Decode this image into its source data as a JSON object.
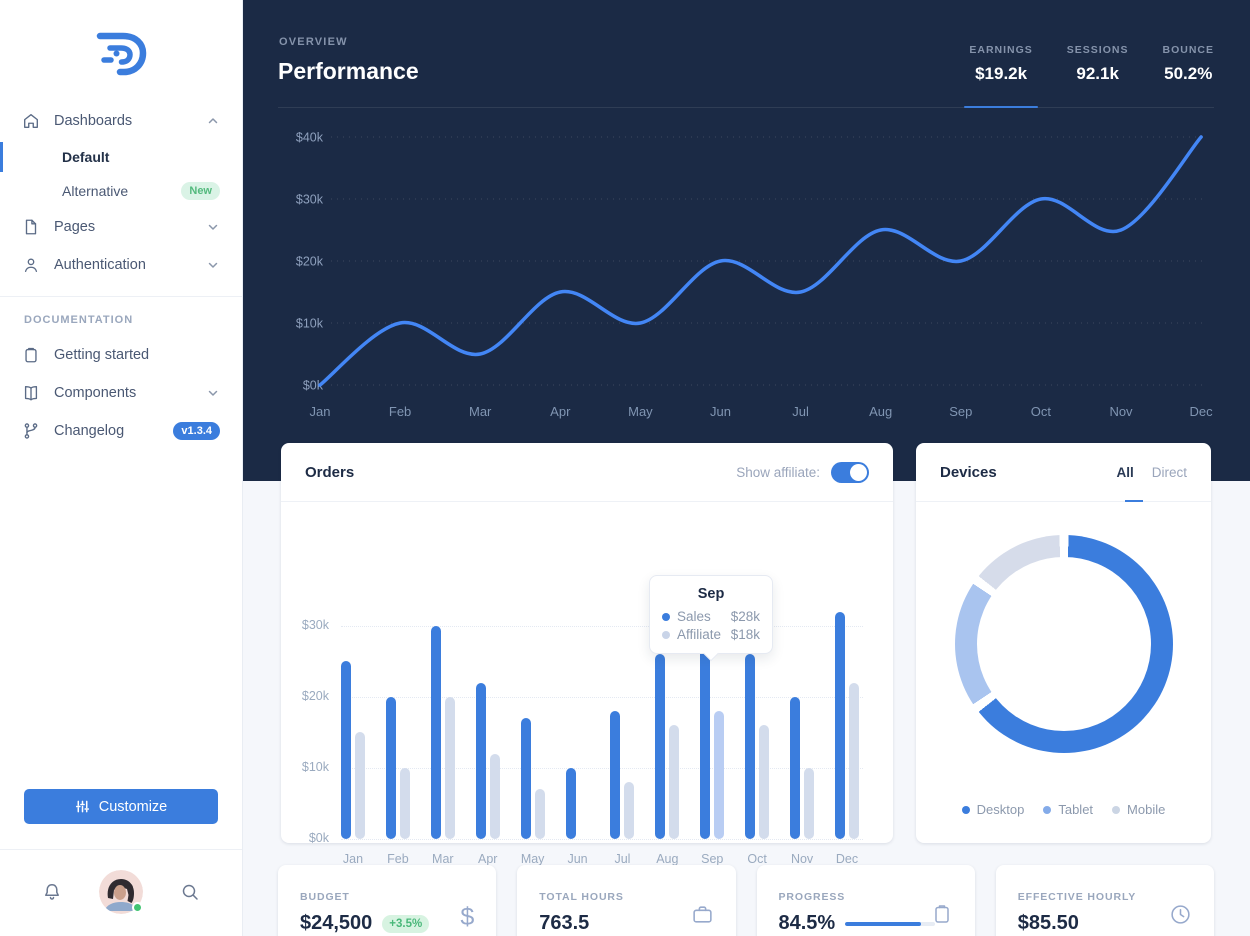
{
  "colors": {
    "accent": "#3b7ddd",
    "navy": "#1b2a45",
    "success": "#4ab87a",
    "muted_bar": "#d3dcec",
    "highlight_bar": "#b9cdf3"
  },
  "sidebar": {
    "nav": [
      {
        "label": "Dashboards",
        "icon": "home-icon",
        "chevron": "up"
      },
      {
        "label": "Default",
        "active": true
      },
      {
        "label": "Alternative",
        "badge": "New"
      },
      {
        "label": "Pages",
        "icon": "file-icon",
        "chevron": "down"
      },
      {
        "label": "Authentication",
        "icon": "user-icon",
        "chevron": "down"
      }
    ],
    "section_label": "DOCUMENTATION",
    "docs": [
      {
        "label": "Getting started",
        "icon": "clipboard-icon"
      },
      {
        "label": "Components",
        "icon": "book-icon",
        "chevron": "down"
      },
      {
        "label": "Changelog",
        "icon": "git-branch-icon",
        "badge": "v1.3.4"
      }
    ],
    "customize_label": "Customize"
  },
  "header": {
    "eyebrow": "OVERVIEW",
    "title": "Performance",
    "stats": [
      {
        "label": "EARNINGS",
        "value": "$19.2k",
        "active": true
      },
      {
        "label": "SESSIONS",
        "value": "92.1k"
      },
      {
        "label": "BOUNCE",
        "value": "50.2%"
      }
    ]
  },
  "orders_card": {
    "title": "Orders",
    "toggle_label": "Show affiliate:",
    "toggle_on": true,
    "tooltip": {
      "title": "Sep",
      "rows": [
        {
          "name": "Sales",
          "value": "$28k"
        },
        {
          "name": "Affiliate",
          "value": "$18k"
        }
      ]
    }
  },
  "devices_card": {
    "title": "Devices",
    "tabs": [
      "All",
      "Direct"
    ],
    "active_tab": "All",
    "legend": [
      "Desktop",
      "Tablet",
      "Mobile"
    ]
  },
  "stat_cards": [
    {
      "label": "BUDGET",
      "value": "$24,500",
      "badge": "+3.5%",
      "icon": "dollar-icon"
    },
    {
      "label": "TOTAL HOURS",
      "value": "763.5",
      "icon": "briefcase-icon"
    },
    {
      "label": "PROGRESS",
      "value": "84.5%",
      "icon": "clipboard-icon",
      "progress": 84.5
    },
    {
      "label": "EFFECTIVE HOURLY",
      "value": "$85.50",
      "icon": "clock-icon"
    }
  ],
  "chart_data": [
    {
      "type": "line",
      "title": "Performance monthly earnings",
      "x": [
        "Jan",
        "Feb",
        "Mar",
        "Apr",
        "May",
        "Jun",
        "Jul",
        "Aug",
        "Sep",
        "Oct",
        "Nov",
        "Dec"
      ],
      "series": [
        {
          "name": "Earnings",
          "values": [
            0,
            10,
            5,
            15,
            10,
            20,
            15,
            25,
            20,
            30,
            25,
            40
          ]
        }
      ],
      "yticks": [
        0,
        10,
        20,
        30,
        40
      ],
      "ytick_labels": [
        "$0k",
        "$10k",
        "$20k",
        "$30k",
        "$40k"
      ],
      "ylim": [
        0,
        42
      ],
      "grid": true,
      "line_color": "#4386f5"
    },
    {
      "type": "bar",
      "title": "Orders",
      "categories": [
        "Jan",
        "Feb",
        "Mar",
        "Apr",
        "May",
        "Jun",
        "Jul",
        "Aug",
        "Sep",
        "Oct",
        "Nov",
        "Dec"
      ],
      "series": [
        {
          "name": "Sales",
          "color": "#3b7ddd",
          "values": [
            25,
            20,
            30,
            22,
            17,
            10,
            18,
            26,
            28,
            26,
            20,
            32
          ]
        },
        {
          "name": "Affiliate",
          "color": "#d3dcec",
          "values": [
            15,
            10,
            20,
            12,
            7,
            0,
            8,
            16,
            18,
            16,
            10,
            22
          ]
        }
      ],
      "yticks": [
        0,
        10,
        20,
        30
      ],
      "ytick_labels": [
        "$0k",
        "$10k",
        "$20k",
        "$30k"
      ],
      "ylim": [
        0,
        33
      ],
      "highlight_index": 8,
      "highlight_affiliate_color": "#b9cdf3",
      "legend_position": "tooltip"
    },
    {
      "type": "donut",
      "title": "Devices",
      "segments": [
        {
          "label": "Desktop",
          "value": 65,
          "color": "#3b7ddd",
          "legend_color": "#3b7ddd"
        },
        {
          "label": "Tablet",
          "value": 20,
          "color": "#a9c4ef",
          "legend_color": "#84abe9"
        },
        {
          "label": "Mobile",
          "value": 15,
          "color": "#d6dcea",
          "legend_color": "#cbd5e4"
        }
      ]
    }
  ]
}
